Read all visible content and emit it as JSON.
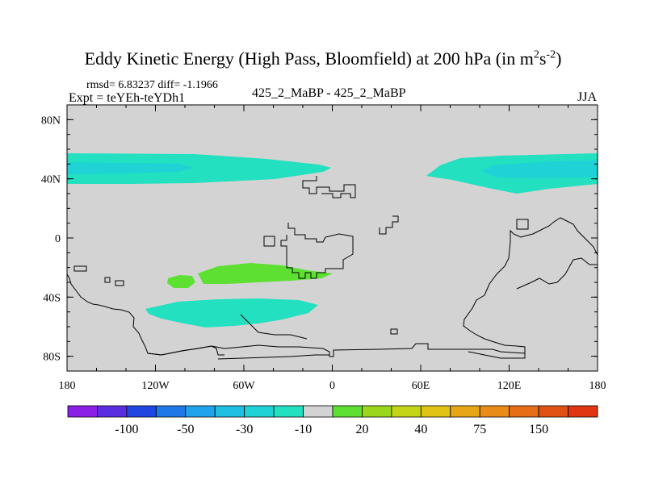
{
  "title": {
    "text": "Eddy Kinetic Energy (High Pass, Bloomfield) at 200 hPa (in m",
    "exp1": "2",
    "mid": "s",
    "exp2": "-2",
    "close": ")"
  },
  "stats": "rmsd= 6.83237 diff= -1.1966",
  "expt": "Expt = teYEh-teYDh1",
  "case": "425_2_MaBP - 425_2_MaBP",
  "season": "JJA",
  "chart_data": {
    "type": "heatmap",
    "title": "Eddy Kinetic Energy (High Pass, Bloomfield) at 200 hPa (in m^2 s^-2)",
    "projection": "cylindrical-equidistant",
    "x_axis": {
      "range": [
        -180,
        180
      ],
      "ticks": [
        -180,
        -120,
        -60,
        0,
        60,
        120,
        180
      ],
      "tick_labels": [
        "180",
        "120W",
        "60W",
        "0",
        "60E",
        "120E",
        "180"
      ]
    },
    "y_axis": {
      "range": [
        -90,
        90
      ],
      "ticks": [
        -80,
        -40,
        0,
        40,
        80
      ],
      "tick_labels": [
        "80S",
        "40S",
        "0",
        "40N",
        "80N"
      ]
    },
    "background_level": "-10 to 10",
    "regions": [
      {
        "name": "band-north-west",
        "level": "-30 to -10",
        "lon_range": [
          -180,
          -2
        ],
        "lat_range": [
          36,
          57
        ]
      },
      {
        "name": "core-north-west",
        "level": "-50 to -30",
        "lon_range": [
          -180,
          -100
        ],
        "lat_range": [
          43,
          49
        ]
      },
      {
        "name": "band-north-east",
        "level": "-30 to -10",
        "lon_range": [
          60,
          180
        ],
        "lat_range": [
          30,
          57
        ]
      },
      {
        "name": "core-north-east",
        "level": "-50 to -30",
        "lon_range": [
          100,
          180
        ],
        "lat_range": [
          39,
          51
        ]
      },
      {
        "name": "positive-blob-west",
        "level": "10 to 20",
        "lon_range": [
          -112,
          -96
        ],
        "lat_range": [
          -33,
          -23
        ]
      },
      {
        "name": "positive-band",
        "level": "10 to 20",
        "lon_range": [
          -90,
          2
        ],
        "lat_range": [
          -30,
          -18
        ]
      },
      {
        "name": "band-south",
        "level": "-30 to -10",
        "lon_range": [
          -128,
          -10
        ],
        "lat_range": [
          -60,
          -40
        ]
      }
    ],
    "colorbar": {
      "tick_labels": [
        "-100",
        "-50",
        "-30",
        "-10",
        "20",
        "40",
        "75",
        "150"
      ],
      "colors": [
        "#8c1fe6",
        "#5a2ee0",
        "#1f46e0",
        "#1f78e8",
        "#1fa3ea",
        "#1fbee3",
        "#1fd2d6",
        "#22e0c0",
        "#d3d3d3",
        "#5ee033",
        "#9ad61c",
        "#c4d417",
        "#e0c314",
        "#e6a617",
        "#e88b17",
        "#e66e17",
        "#e05214",
        "#e03612"
      ]
    }
  }
}
